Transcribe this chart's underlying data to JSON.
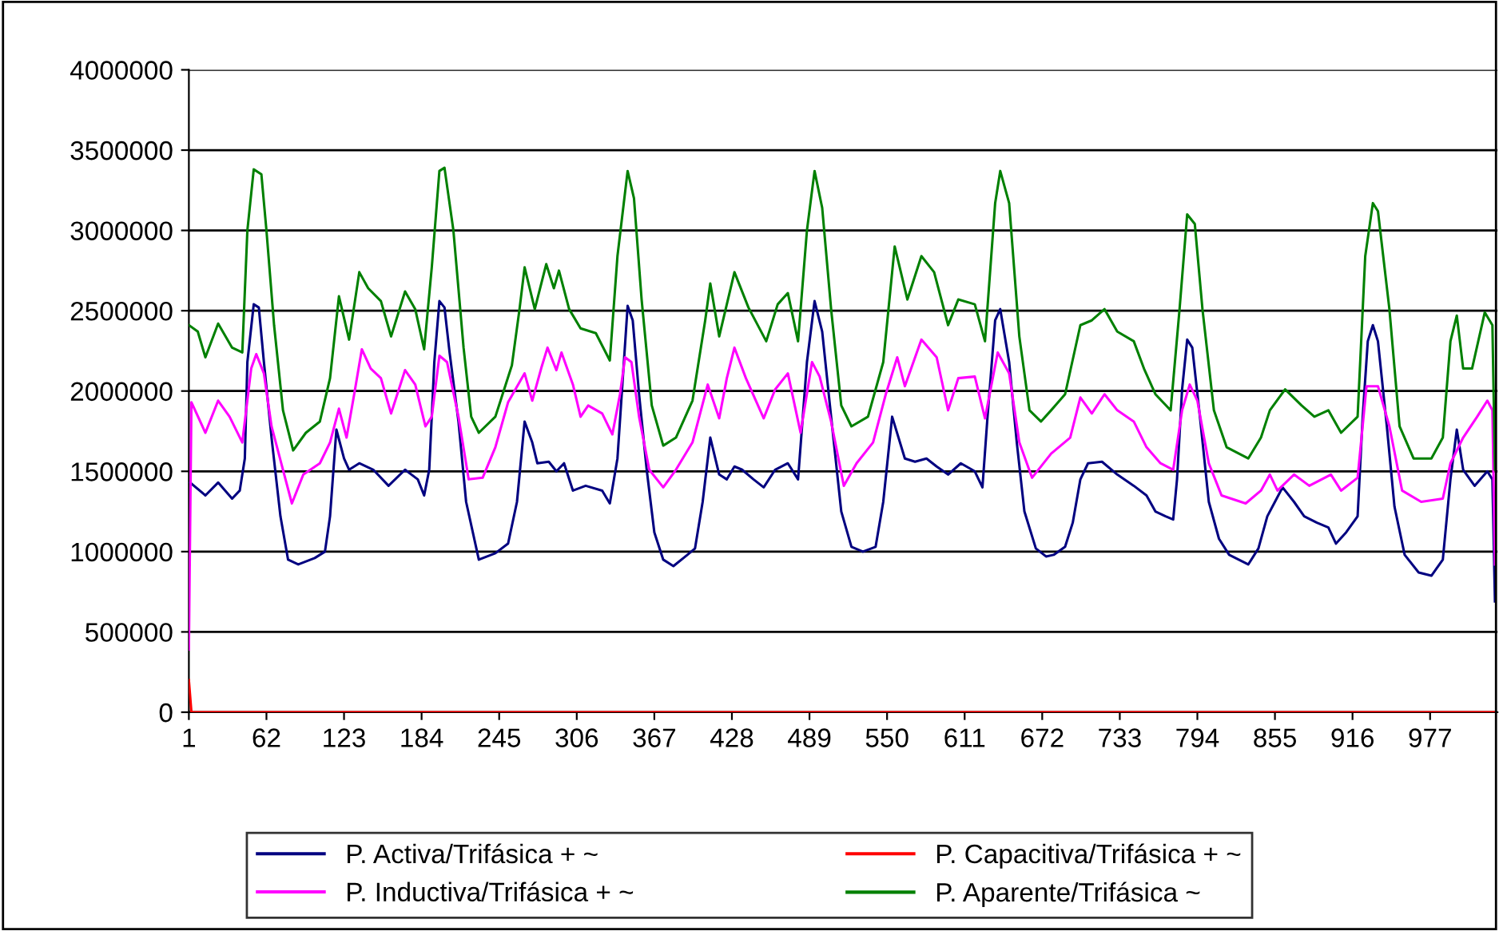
{
  "chart_data": {
    "type": "line",
    "xlim": [
      1,
      1030
    ],
    "xticks": [
      1,
      62,
      123,
      184,
      245,
      306,
      367,
      428,
      489,
      550,
      611,
      672,
      733,
      794,
      855,
      916,
      977
    ],
    "ylim": [
      0,
      4000000
    ],
    "yticks": [
      0,
      500000,
      1000000,
      1500000,
      2000000,
      2500000,
      3000000,
      3500000,
      4000000
    ],
    "grid": "y",
    "legend": "bottom",
    "line_style": "solid",
    "marker": "none",
    "series": [
      {
        "name": "P. Activa/Trifásica + ~",
        "color": "#000080",
        "x": [
          2,
          14,
          24,
          35,
          41,
          45,
          47,
          52,
          56,
          60,
          66,
          73,
          79,
          87,
          100,
          108,
          112,
          117,
          123,
          127,
          135,
          146,
          158,
          171,
          181,
          186,
          190,
          194,
          198,
          202,
          206,
          213,
          219,
          229,
          242,
          252,
          259,
          265,
          271,
          275,
          284,
          290,
          296,
          303,
          313,
          326,
          332,
          338,
          346,
          350,
          355,
          361,
          367,
          374,
          382,
          393,
          399,
          405,
          411,
          418,
          424,
          430,
          436,
          445,
          453,
          462,
          472,
          480,
          487,
          493,
          499,
          506,
          514,
          522,
          531,
          541,
          547,
          554,
          564,
          572,
          581,
          589,
          598,
          608,
          619,
          625,
          629,
          635,
          639,
          646,
          652,
          658,
          667,
          675,
          681,
          690,
          696,
          702,
          708,
          719,
          731,
          744,
          754,
          761,
          769,
          775,
          778,
          782,
          786,
          790,
          796,
          803,
          811,
          819,
          834,
          842,
          849,
          855,
          861,
          870,
          878,
          888,
          897,
          903,
          911,
          920,
          924,
          928,
          932,
          936,
          943,
          949,
          957,
          968,
          978,
          987,
          993,
          998,
          1003,
          1012,
          1022,
          1026,
          1028
        ],
        "values": [
          1430000,
          1350000,
          1430000,
          1330000,
          1380000,
          1580000,
          2180000,
          2540000,
          2520000,
          2180000,
          1710000,
          1220000,
          950000,
          920000,
          960000,
          1000000,
          1220000,
          1760000,
          1580000,
          1510000,
          1550000,
          1510000,
          1410000,
          1510000,
          1450000,
          1350000,
          1510000,
          2180000,
          2560000,
          2520000,
          2240000,
          1810000,
          1310000,
          950000,
          990000,
          1050000,
          1310000,
          1810000,
          1680000,
          1550000,
          1560000,
          1500000,
          1550000,
          1380000,
          1410000,
          1380000,
          1300000,
          1580000,
          2530000,
          2440000,
          1980000,
          1510000,
          1120000,
          950000,
          910000,
          980000,
          1020000,
          1310000,
          1710000,
          1480000,
          1450000,
          1530000,
          1510000,
          1450000,
          1400000,
          1510000,
          1550000,
          1450000,
          2180000,
          2560000,
          2370000,
          1840000,
          1250000,
          1030000,
          1000000,
          1030000,
          1310000,
          1840000,
          1580000,
          1560000,
          1580000,
          1530000,
          1480000,
          1550000,
          1500000,
          1400000,
          1840000,
          2440000,
          2510000,
          2180000,
          1680000,
          1250000,
          1020000,
          970000,
          980000,
          1030000,
          1180000,
          1450000,
          1550000,
          1560000,
          1480000,
          1410000,
          1350000,
          1250000,
          1220000,
          1200000,
          1450000,
          2010000,
          2320000,
          2270000,
          1840000,
          1310000,
          1080000,
          980000,
          920000,
          1020000,
          1220000,
          1310000,
          1400000,
          1310000,
          1220000,
          1180000,
          1150000,
          1050000,
          1120000,
          1220000,
          1840000,
          2310000,
          2410000,
          2310000,
          1780000,
          1280000,
          980000,
          870000,
          850000,
          950000,
          1450000,
          1760000,
          1510000,
          1410000,
          1500000,
          1450000,
          690000
        ]
      },
      {
        "name": "P. Inductiva/Trifásica + ~",
        "color": "#ff00ff",
        "x": [
          1,
          3,
          14,
          24,
          33,
          43,
          50,
          54,
          60,
          66,
          75,
          82,
          91,
          104,
          112,
          119,
          125,
          131,
          137,
          144,
          152,
          160,
          171,
          179,
          187,
          192,
          198,
          204,
          213,
          221,
          232,
          242,
          252,
          265,
          271,
          278,
          283,
          290,
          294,
          303,
          309,
          315,
          326,
          334,
          340,
          344,
          349,
          355,
          363,
          374,
          384,
          397,
          409,
          418,
          424,
          430,
          439,
          453,
          462,
          472,
          482,
          491,
          497,
          506,
          516,
          526,
          539,
          549,
          558,
          564,
          577,
          589,
          598,
          606,
          619,
          627,
          637,
          646,
          654,
          664,
          679,
          694,
          702,
          711,
          721,
          731,
          744,
          754,
          765,
          775,
          782,
          788,
          794,
          803,
          813,
          832,
          844,
          851,
          857,
          870,
          882,
          899,
          907,
          920,
          927,
          936,
          945,
          955,
          970,
          987,
          993,
          1003,
          1014,
          1022,
          1026,
          1028
        ],
        "values": [
          390000,
          1930000,
          1740000,
          1940000,
          1840000,
          1680000,
          2140000,
          2230000,
          2110000,
          1780000,
          1510000,
          1300000,
          1480000,
          1550000,
          1680000,
          1890000,
          1710000,
          1980000,
          2260000,
          2140000,
          2080000,
          1860000,
          2130000,
          2040000,
          1780000,
          1840000,
          2220000,
          2180000,
          1840000,
          1450000,
          1460000,
          1650000,
          1930000,
          2110000,
          1940000,
          2140000,
          2270000,
          2130000,
          2240000,
          2040000,
          1840000,
          1910000,
          1860000,
          1730000,
          1980000,
          2210000,
          2180000,
          1840000,
          1510000,
          1400000,
          1510000,
          1680000,
          2040000,
          1830000,
          2080000,
          2270000,
          2080000,
          1830000,
          2010000,
          2110000,
          1740000,
          2180000,
          2090000,
          1810000,
          1410000,
          1550000,
          1680000,
          1980000,
          2210000,
          2030000,
          2320000,
          2210000,
          1880000,
          2080000,
          2090000,
          1830000,
          2240000,
          2110000,
          1680000,
          1460000,
          1610000,
          1710000,
          1960000,
          1860000,
          1980000,
          1880000,
          1810000,
          1650000,
          1550000,
          1510000,
          1880000,
          2040000,
          1940000,
          1550000,
          1350000,
          1300000,
          1380000,
          1480000,
          1380000,
          1480000,
          1410000,
          1480000,
          1380000,
          1460000,
          2030000,
          2030000,
          1780000,
          1380000,
          1310000,
          1330000,
          1550000,
          1710000,
          1840000,
          1940000,
          1880000,
          920000
        ]
      },
      {
        "name": "P. Capacitiva/Trifásica + ~",
        "color": "#ff0000",
        "x": [
          1,
          3,
          1028
        ],
        "values": [
          200000,
          0,
          0
        ]
      },
      {
        "name": "P. Aparente/Trifásica ~",
        "color": "#008000",
        "x": [
          1,
          8,
          14,
          24,
          35,
          43,
          47,
          52,
          58,
          62,
          68,
          75,
          83,
          93,
          104,
          112,
          119,
          127,
          135,
          142,
          152,
          160,
          171,
          179,
          186,
          192,
          198,
          202,
          209,
          217,
          223,
          229,
          242,
          255,
          261,
          265,
          273,
          282,
          288,
          292,
          300,
          309,
          321,
          332,
          338,
          346,
          351,
          357,
          365,
          374,
          384,
          397,
          407,
          411,
          418,
          430,
          441,
          455,
          464,
          472,
          480,
          487,
          493,
          499,
          506,
          514,
          522,
          535,
          547,
          556,
          566,
          577,
          587,
          598,
          606,
          619,
          627,
          635,
          639,
          646,
          654,
          662,
          671,
          679,
          690,
          702,
          711,
          721,
          731,
          744,
          752,
          761,
          773,
          780,
          786,
          792,
          798,
          807,
          817,
          834,
          844,
          851,
          863,
          876,
          886,
          897,
          907,
          920,
          926,
          932,
          936,
          945,
          953,
          964,
          978,
          987,
          993,
          998,
          1003,
          1010,
          1020,
          1026,
          1028
        ],
        "values": [
          2410000,
          2370000,
          2210000,
          2420000,
          2270000,
          2240000,
          3000000,
          3380000,
          3350000,
          3000000,
          2410000,
          1880000,
          1630000,
          1740000,
          1810000,
          2080000,
          2590000,
          2320000,
          2740000,
          2640000,
          2560000,
          2340000,
          2620000,
          2510000,
          2260000,
          2770000,
          3370000,
          3390000,
          3000000,
          2270000,
          1840000,
          1740000,
          1840000,
          2160000,
          2510000,
          2770000,
          2510000,
          2790000,
          2640000,
          2750000,
          2510000,
          2390000,
          2360000,
          2190000,
          2840000,
          3370000,
          3200000,
          2570000,
          1910000,
          1660000,
          1710000,
          1940000,
          2440000,
          2670000,
          2340000,
          2740000,
          2520000,
          2310000,
          2540000,
          2610000,
          2310000,
          3000000,
          3370000,
          3140000,
          2510000,
          1910000,
          1780000,
          1840000,
          2180000,
          2900000,
          2570000,
          2840000,
          2740000,
          2410000,
          2570000,
          2540000,
          2310000,
          3170000,
          3370000,
          3170000,
          2340000,
          1880000,
          1810000,
          1880000,
          1980000,
          2410000,
          2440000,
          2510000,
          2370000,
          2310000,
          2140000,
          1980000,
          1880000,
          2510000,
          3100000,
          3040000,
          2510000,
          1880000,
          1650000,
          1580000,
          1710000,
          1880000,
          2010000,
          1910000,
          1840000,
          1880000,
          1740000,
          1840000,
          2840000,
          3170000,
          3120000,
          2510000,
          1780000,
          1580000,
          1580000,
          1710000,
          2310000,
          2470000,
          2140000,
          2140000,
          2490000,
          2410000,
          1510000
        ]
      }
    ]
  }
}
